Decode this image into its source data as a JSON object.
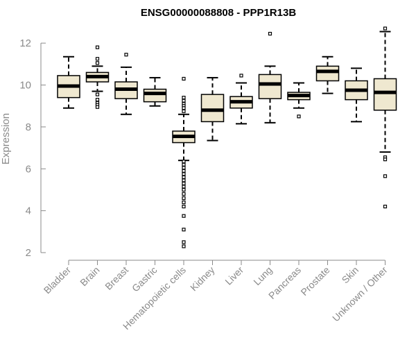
{
  "chart_data": {
    "type": "boxplot",
    "title": "ENSG00000088808 - PPP1R13B",
    "xlabel": "",
    "ylabel": "Expression",
    "ylim": [
      2,
      12.7
    ],
    "yticks": [
      2,
      4,
      6,
      8,
      10,
      12
    ],
    "box_fill": "#efe8d0",
    "box_stroke": "#000000",
    "categories": [
      "Bladder",
      "Brain",
      "Breast",
      "Gastric",
      "Hematopoietic cells",
      "Kidney",
      "Liver",
      "Lung",
      "Pancreas",
      "Prostate",
      "Skin",
      "Unknown / Other"
    ],
    "boxes": [
      {
        "whisker_low": 8.9,
        "q1": 9.4,
        "median": 9.95,
        "q3": 10.45,
        "whisker_high": 11.35,
        "outliers": []
      },
      {
        "whisker_low": 9.7,
        "q1": 10.15,
        "median": 10.4,
        "q3": 10.6,
        "whisker_high": 10.9,
        "outliers": [
          11.8,
          11.25,
          11.05,
          9.55,
          9.3,
          9.15,
          9.05,
          8.95
        ]
      },
      {
        "whisker_low": 8.6,
        "q1": 9.35,
        "median": 9.8,
        "q3": 10.15,
        "whisker_high": 10.85,
        "outliers": [
          11.45
        ]
      },
      {
        "whisker_low": 9.0,
        "q1": 9.2,
        "median": 9.6,
        "q3": 9.8,
        "whisker_high": 10.35,
        "outliers": []
      },
      {
        "whisker_low": 6.4,
        "q1": 7.25,
        "median": 7.55,
        "q3": 7.8,
        "whisker_high": 8.6,
        "outliers": [
          10.3,
          9.4,
          9.25,
          9.1,
          9.0,
          8.9,
          8.75,
          6.35,
          6.2,
          6.05,
          5.9,
          5.75,
          5.6,
          5.45,
          5.3,
          5.15,
          5.0,
          4.8,
          4.6,
          4.4,
          4.2,
          3.75,
          3.1,
          2.5,
          2.3
        ]
      },
      {
        "whisker_low": 7.35,
        "q1": 8.25,
        "median": 8.8,
        "q3": 9.55,
        "whisker_high": 10.35,
        "outliers": []
      },
      {
        "whisker_low": 8.15,
        "q1": 8.9,
        "median": 9.2,
        "q3": 9.45,
        "whisker_high": 10.1,
        "outliers": [
          10.45
        ]
      },
      {
        "whisker_low": 8.2,
        "q1": 9.35,
        "median": 10.05,
        "q3": 10.5,
        "whisker_high": 10.9,
        "outliers": [
          12.45
        ]
      },
      {
        "whisker_low": 8.9,
        "q1": 9.3,
        "median": 9.5,
        "q3": 9.65,
        "whisker_high": 10.1,
        "outliers": [
          8.5
        ]
      },
      {
        "whisker_low": 9.6,
        "q1": 10.2,
        "median": 10.65,
        "q3": 10.9,
        "whisker_high": 11.35,
        "outliers": []
      },
      {
        "whisker_low": 8.25,
        "q1": 9.3,
        "median": 9.75,
        "q3": 10.2,
        "whisker_high": 10.8,
        "outliers": []
      },
      {
        "whisker_low": 6.8,
        "q1": 8.8,
        "median": 9.65,
        "q3": 10.3,
        "whisker_high": 12.55,
        "outliers": [
          12.7,
          6.55,
          6.45,
          5.65,
          4.2
        ]
      }
    ]
  }
}
